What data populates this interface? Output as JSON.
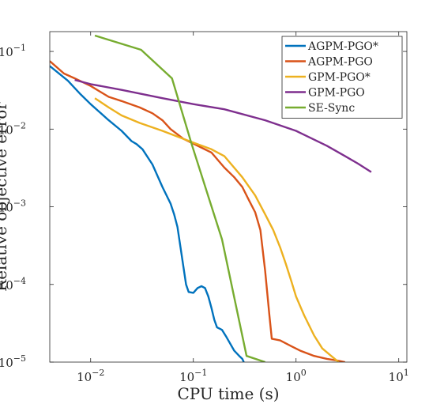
{
  "chart_data": {
    "type": "line",
    "xscale": "log",
    "yscale": "log",
    "xlim": [
      0.004,
      12
    ],
    "ylim": [
      1e-05,
      0.18
    ],
    "xlabel": "CPU time (s)",
    "ylabel": "Relative objective error",
    "grid": false,
    "legend_position": "top-right",
    "x_ticks": [
      {
        "value": 0.01,
        "base": "10",
        "exp": "−2"
      },
      {
        "value": 0.1,
        "base": "10",
        "exp": "−1"
      },
      {
        "value": 1,
        "base": "10",
        "exp": "0"
      },
      {
        "value": 10,
        "base": "10",
        "exp": "1"
      }
    ],
    "y_ticks": [
      {
        "value": 1e-05,
        "base": "10",
        "exp": "−5"
      },
      {
        "value": 0.0001,
        "base": "10",
        "exp": "−4"
      },
      {
        "value": 0.001,
        "base": "10",
        "exp": "−3"
      },
      {
        "value": 0.01,
        "base": "10",
        "exp": "−2"
      },
      {
        "value": 0.1,
        "base": "10",
        "exp": "−1"
      }
    ],
    "series": [
      {
        "name": "AGPM-PGO*",
        "color": "#0072BD",
        "points": [
          [
            0.004,
            0.065
          ],
          [
            0.006,
            0.042
          ],
          [
            0.008,
            0.028
          ],
          [
            0.01,
            0.021
          ],
          [
            0.015,
            0.013
          ],
          [
            0.02,
            0.0095
          ],
          [
            0.025,
            0.007
          ],
          [
            0.028,
            0.0064
          ],
          [
            0.032,
            0.0055
          ],
          [
            0.04,
            0.0035
          ],
          [
            0.05,
            0.0018
          ],
          [
            0.06,
            0.0011
          ],
          [
            0.065,
            0.0008
          ],
          [
            0.07,
            0.00055
          ],
          [
            0.075,
            0.0003
          ],
          [
            0.08,
            0.00017
          ],
          [
            0.085,
            0.0001
          ],
          [
            0.09,
            8e-05
          ],
          [
            0.1,
            7.8e-05
          ],
          [
            0.11,
            9e-05
          ],
          [
            0.12,
            9.5e-05
          ],
          [
            0.13,
            9e-05
          ],
          [
            0.14,
            7e-05
          ],
          [
            0.15,
            5e-05
          ],
          [
            0.16,
            3.5e-05
          ],
          [
            0.17,
            2.8e-05
          ],
          [
            0.19,
            2.6e-05
          ],
          [
            0.21,
            2.1e-05
          ],
          [
            0.25,
            1.4e-05
          ],
          [
            0.28,
            1.2e-05
          ],
          [
            0.3,
            1.1e-05
          ],
          [
            0.31,
            1e-05
          ]
        ]
      },
      {
        "name": "AGPM-PGO",
        "color": "#D95319",
        "points": [
          [
            0.004,
            0.075
          ],
          [
            0.0055,
            0.052
          ],
          [
            0.007,
            0.045
          ],
          [
            0.01,
            0.036
          ],
          [
            0.015,
            0.026
          ],
          [
            0.02,
            0.023
          ],
          [
            0.03,
            0.019
          ],
          [
            0.04,
            0.016
          ],
          [
            0.05,
            0.013
          ],
          [
            0.06,
            0.01
          ],
          [
            0.08,
            0.0075
          ],
          [
            0.1,
            0.0065
          ],
          [
            0.15,
            0.005
          ],
          [
            0.2,
            0.0032
          ],
          [
            0.25,
            0.0024
          ],
          [
            0.3,
            0.0018
          ],
          [
            0.35,
            0.0012
          ],
          [
            0.4,
            0.00085
          ],
          [
            0.45,
            0.0005
          ],
          [
            0.5,
            0.00015
          ],
          [
            0.55,
            4e-05
          ],
          [
            0.58,
            2e-05
          ],
          [
            0.7,
            1.9e-05
          ],
          [
            0.9,
            1.6e-05
          ],
          [
            1.1,
            1.4e-05
          ],
          [
            1.5,
            1.2e-05
          ],
          [
            2,
            1.1e-05
          ],
          [
            2.5,
            1.05e-05
          ],
          [
            3,
            1e-05
          ]
        ]
      },
      {
        "name": "GPM-PGO*",
        "color": "#EDB120",
        "points": [
          [
            0.011,
            0.025
          ],
          [
            0.015,
            0.019
          ],
          [
            0.02,
            0.015
          ],
          [
            0.03,
            0.012
          ],
          [
            0.05,
            0.0095
          ],
          [
            0.08,
            0.0075
          ],
          [
            0.1,
            0.0067
          ],
          [
            0.15,
            0.0055
          ],
          [
            0.2,
            0.0045
          ],
          [
            0.3,
            0.0024
          ],
          [
            0.4,
            0.0014
          ],
          [
            0.5,
            0.0008
          ],
          [
            0.6,
            0.0005
          ],
          [
            0.7,
            0.0003
          ],
          [
            0.8,
            0.00018
          ],
          [
            0.9,
            0.00011
          ],
          [
            1,
            7e-05
          ],
          [
            1.2,
            4e-05
          ],
          [
            1.5,
            2.2e-05
          ],
          [
            1.8,
            1.5e-05
          ],
          [
            2.2,
            1.2e-05
          ],
          [
            2.6,
            1e-05
          ]
        ]
      },
      {
        "name": "GPM-PGO",
        "color": "#7E2F8E",
        "points": [
          [
            0.007,
            0.043
          ],
          [
            0.01,
            0.038
          ],
          [
            0.02,
            0.032
          ],
          [
            0.05,
            0.025
          ],
          [
            0.1,
            0.021
          ],
          [
            0.2,
            0.018
          ],
          [
            0.5,
            0.013
          ],
          [
            1,
            0.0095
          ],
          [
            2,
            0.0061
          ],
          [
            3,
            0.0045
          ],
          [
            4,
            0.0036
          ],
          [
            5.4,
            0.0028
          ]
        ]
      },
      {
        "name": "SE-Sync",
        "color": "#77AC30",
        "points": [
          [
            0.011,
            0.16
          ],
          [
            0.031,
            0.105
          ],
          [
            0.062,
            0.045
          ],
          [
            0.096,
            0.0065
          ],
          [
            0.19,
            0.00038
          ],
          [
            0.33,
            1.2e-05
          ],
          [
            0.5,
            1e-05
          ]
        ]
      }
    ]
  }
}
